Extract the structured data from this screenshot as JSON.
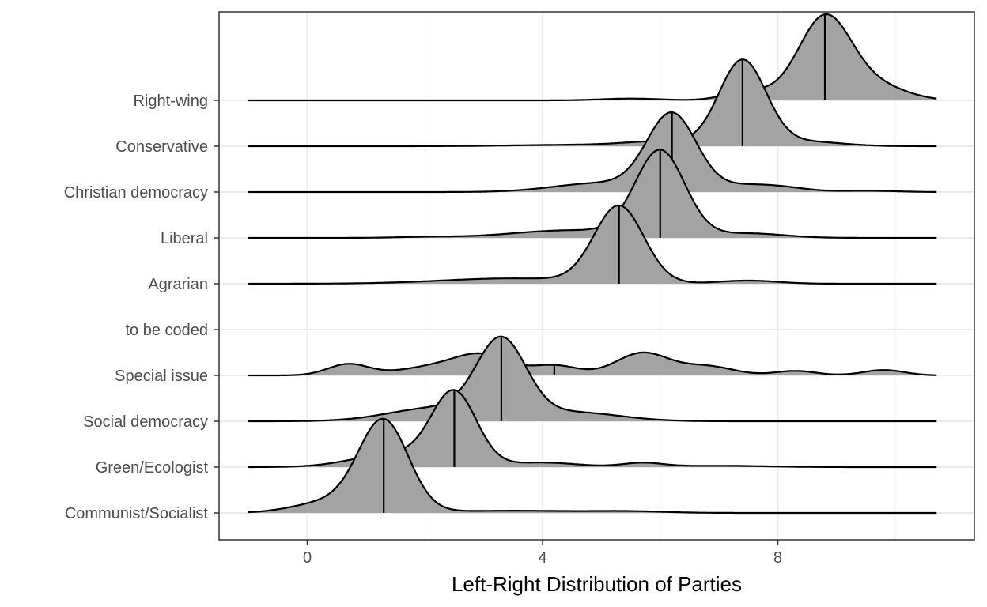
{
  "chart_data": {
    "type": "ridgeline",
    "xlabel": "Left-Right Distribution of Parties",
    "xlim": [
      -1.5,
      11.5
    ],
    "x_ticks": [
      0,
      4,
      8
    ],
    "x_tick_labels": [
      "0",
      "4",
      "8"
    ],
    "x_minor_ticks": [
      2,
      6,
      10
    ],
    "fill_color": "#a3a3a3",
    "line_color": "#000000",
    "grid": true,
    "categories": [
      "Communist/Socialist",
      "Green/Ecologist",
      "Social democracy",
      "Special issue",
      "to be coded",
      "Agrarian",
      "Liberal",
      "Christian democracy",
      "Conservative",
      "Right-wing"
    ],
    "series": [
      {
        "name": "Communist/Socialist",
        "median": 1.3,
        "peaks": [
          {
            "mu": 1.3,
            "sigma": 0.42,
            "h": 2.0
          },
          {
            "mu": 0.4,
            "sigma": 0.6,
            "h": 0.25
          },
          {
            "mu": 3.5,
            "sigma": 1.2,
            "h": 0.05
          },
          {
            "mu": 5.5,
            "sigma": 0.6,
            "h": 0.03
          }
        ]
      },
      {
        "name": "Green/Ecologist",
        "median": 2.5,
        "peaks": [
          {
            "mu": 2.5,
            "sigma": 0.38,
            "h": 1.6
          },
          {
            "mu": 1.5,
            "sigma": 0.7,
            "h": 0.3
          },
          {
            "mu": 4.0,
            "sigma": 0.6,
            "h": 0.1
          },
          {
            "mu": 5.7,
            "sigma": 0.35,
            "h": 0.09
          },
          {
            "mu": 7.0,
            "sigma": 0.8,
            "h": 0.03
          }
        ]
      },
      {
        "name": "Social democracy",
        "median": 3.3,
        "peaks": [
          {
            "mu": 3.3,
            "sigma": 0.42,
            "h": 1.7
          },
          {
            "mu": 2.2,
            "sigma": 0.8,
            "h": 0.3
          },
          {
            "mu": 4.5,
            "sigma": 0.8,
            "h": 0.2
          }
        ]
      },
      {
        "name": "Special issue",
        "median": 4.2,
        "peaks": [
          {
            "mu": 0.7,
            "sigma": 0.35,
            "h": 0.25
          },
          {
            "mu": 2.2,
            "sigma": 0.6,
            "h": 0.2
          },
          {
            "mu": 3.0,
            "sigma": 0.45,
            "h": 0.4
          },
          {
            "mu": 4.2,
            "sigma": 0.4,
            "h": 0.22
          },
          {
            "mu": 5.7,
            "sigma": 0.45,
            "h": 0.5
          },
          {
            "mu": 6.8,
            "sigma": 0.45,
            "h": 0.2
          },
          {
            "mu": 8.3,
            "sigma": 0.35,
            "h": 0.1
          },
          {
            "mu": 9.8,
            "sigma": 0.35,
            "h": 0.12
          }
        ]
      },
      {
        "name": "to be coded",
        "median": null,
        "peaks": []
      },
      {
        "name": "Agrarian",
        "median": 5.3,
        "peaks": [
          {
            "mu": 5.3,
            "sigma": 0.42,
            "h": 1.7
          },
          {
            "mu": 3.5,
            "sigma": 1.2,
            "h": 0.12
          },
          {
            "mu": 7.5,
            "sigma": 0.5,
            "h": 0.07
          }
        ]
      },
      {
        "name": "Liberal",
        "median": 6.0,
        "peaks": [
          {
            "mu": 6.0,
            "sigma": 0.42,
            "h": 1.9
          },
          {
            "mu": 4.5,
            "sigma": 1.0,
            "h": 0.17
          },
          {
            "mu": 7.5,
            "sigma": 0.6,
            "h": 0.1
          },
          {
            "mu": 2.0,
            "sigma": 0.5,
            "h": 0.02
          }
        ]
      },
      {
        "name": "Christian democracy",
        "median": 6.2,
        "peaks": [
          {
            "mu": 6.2,
            "sigma": 0.42,
            "h": 1.7
          },
          {
            "mu": 5.0,
            "sigma": 0.8,
            "h": 0.2
          },
          {
            "mu": 7.5,
            "sigma": 0.5,
            "h": 0.15
          },
          {
            "mu": 8.2,
            "sigma": 0.4,
            "h": 0.06
          },
          {
            "mu": 9.5,
            "sigma": 0.5,
            "h": 0.03
          }
        ]
      },
      {
        "name": "Conservative",
        "median": 7.4,
        "peaks": [
          {
            "mu": 7.4,
            "sigma": 0.4,
            "h": 1.9
          },
          {
            "mu": 6.0,
            "sigma": 0.6,
            "h": 0.1
          },
          {
            "mu": 8.5,
            "sigma": 0.6,
            "h": 0.1
          },
          {
            "mu": 4.5,
            "sigma": 1.0,
            "h": 0.03
          }
        ]
      },
      {
        "name": "Right-wing",
        "median": 8.8,
        "peaks": [
          {
            "mu": 8.8,
            "sigma": 0.45,
            "h": 1.85
          },
          {
            "mu": 9.7,
            "sigma": 0.5,
            "h": 0.3
          },
          {
            "mu": 7.5,
            "sigma": 0.4,
            "h": 0.2
          },
          {
            "mu": 5.5,
            "sigma": 0.5,
            "h": 0.04
          }
        ]
      }
    ]
  }
}
